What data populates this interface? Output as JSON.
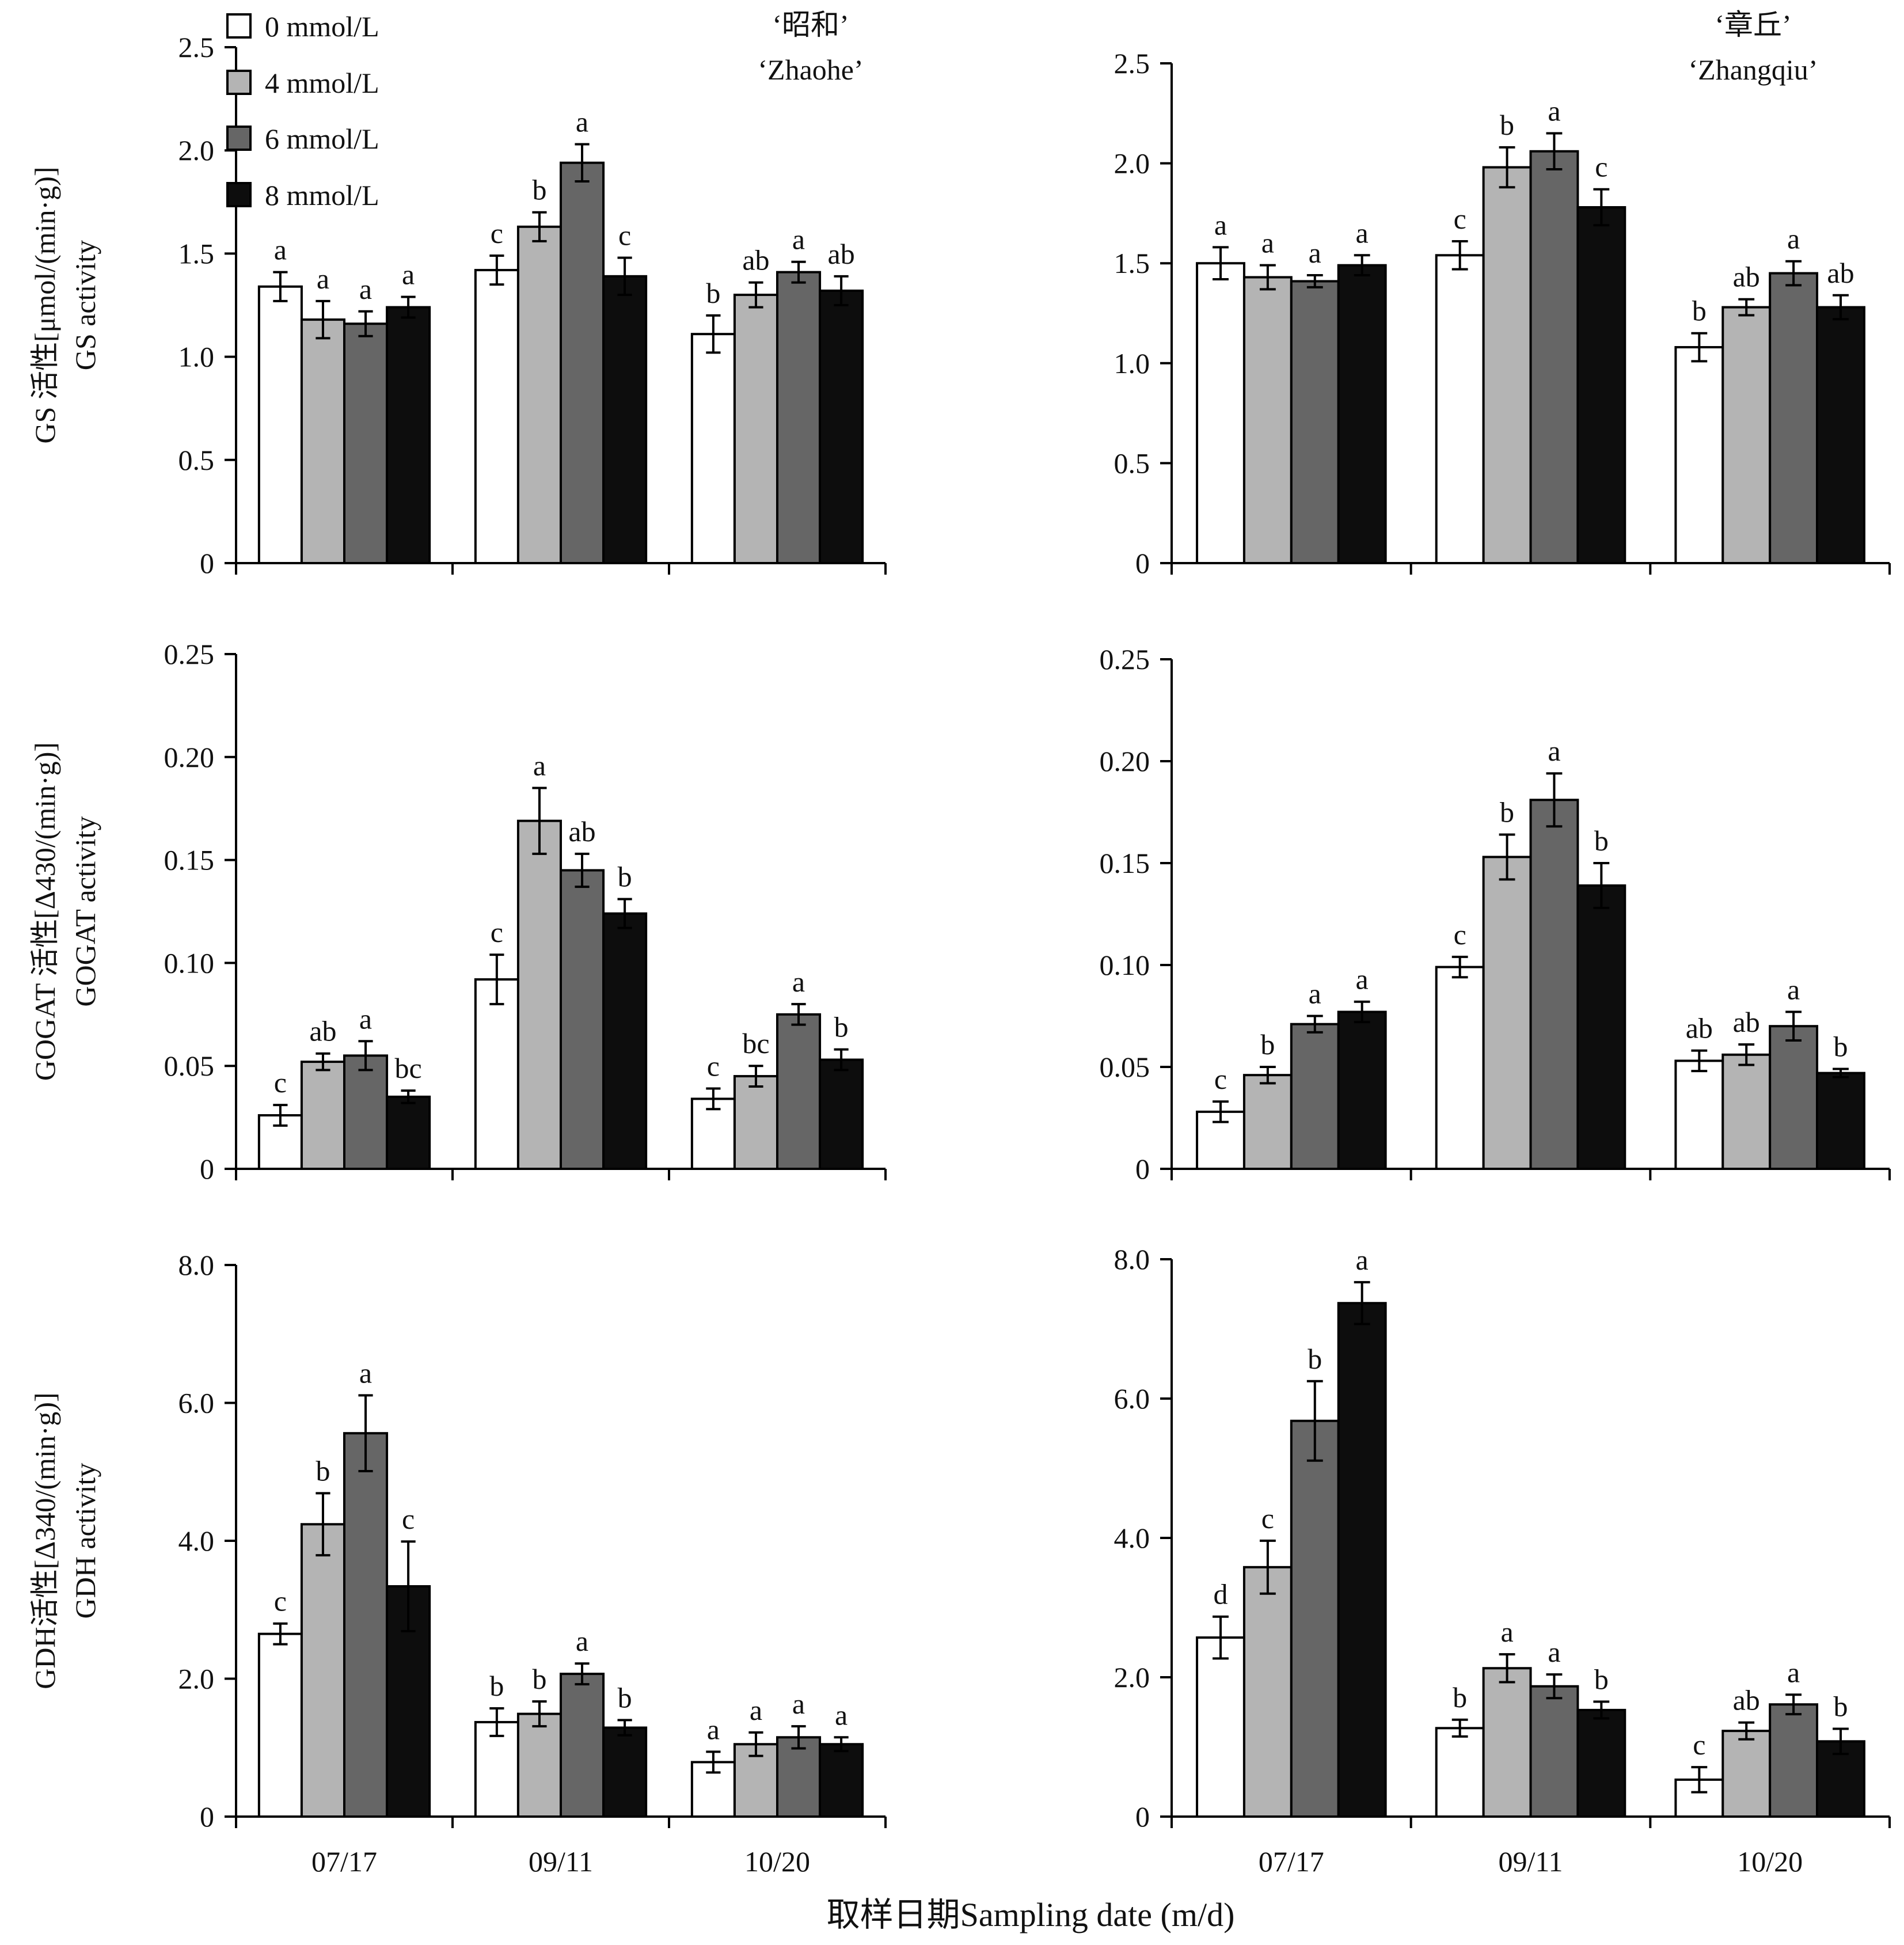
{
  "legend": {
    "entries": [
      {
        "label": "0 mmol/L",
        "color": "#ffffff"
      },
      {
        "label": "4 mmol/L",
        "color": "#b4b4b4"
      },
      {
        "label": "6 mmol/L",
        "color": "#666666"
      },
      {
        "label": "8 mmol/L",
        "color": "#0d0d0d"
      }
    ]
  },
  "cultivars": [
    {
      "cn": "‘昭和’",
      "en": "‘Zhaohe’"
    },
    {
      "cn": "‘章丘’",
      "en": "‘Zhangqiu’"
    }
  ],
  "xlabel": "取样日期Sampling date (m/d)",
  "chart_data": [
    {
      "type": "bar",
      "id": "gs-zhaohe",
      "ylabel_cn": "GS 活性[μmol/(min·g)]",
      "ylabel_en": "GS activity",
      "ylim": [
        0,
        2.5
      ],
      "yticks": [
        "0",
        "0.5",
        "1.0",
        "1.5",
        "2.0",
        "2.5"
      ],
      "categories": [
        "07/17",
        "09/11",
        "10/20"
      ],
      "show_xticklabels": false,
      "series": [
        {
          "name": "0 mmol/L",
          "values": [
            1.34,
            1.42,
            1.11
          ],
          "errors": [
            0.07,
            0.07,
            0.09
          ],
          "letters": [
            "a",
            "c",
            "b"
          ]
        },
        {
          "name": "4 mmol/L",
          "values": [
            1.18,
            1.63,
            1.3
          ],
          "errors": [
            0.09,
            0.07,
            0.06
          ],
          "letters": [
            "a",
            "b",
            "ab"
          ]
        },
        {
          "name": "6 mmol/L",
          "values": [
            1.16,
            1.94,
            1.41
          ],
          "errors": [
            0.06,
            0.09,
            0.05
          ],
          "letters": [
            "a",
            "a",
            "a"
          ]
        },
        {
          "name": "8 mmol/L",
          "values": [
            1.24,
            1.39,
            1.32
          ],
          "errors": [
            0.05,
            0.09,
            0.07
          ],
          "letters": [
            "a",
            "c",
            "ab"
          ]
        }
      ]
    },
    {
      "type": "bar",
      "id": "gs-zhangqiu",
      "ylabel_cn": "",
      "ylabel_en": "",
      "ylim": [
        0,
        2.5
      ],
      "yticks": [
        "0",
        "0.5",
        "1.0",
        "1.5",
        "2.0",
        "2.5"
      ],
      "categories": [
        "07/17",
        "09/11",
        "10/20"
      ],
      "show_xticklabels": false,
      "series": [
        {
          "name": "0 mmol/L",
          "values": [
            1.5,
            1.54,
            1.08
          ],
          "errors": [
            0.08,
            0.07,
            0.07
          ],
          "letters": [
            "a",
            "c",
            "b"
          ]
        },
        {
          "name": "4 mmol/L",
          "values": [
            1.43,
            1.98,
            1.28
          ],
          "errors": [
            0.06,
            0.1,
            0.04
          ],
          "letters": [
            "a",
            "b",
            "ab"
          ]
        },
        {
          "name": "6 mmol/L",
          "values": [
            1.41,
            2.06,
            1.45
          ],
          "errors": [
            0.03,
            0.09,
            0.06
          ],
          "letters": [
            "a",
            "a",
            "a"
          ]
        },
        {
          "name": "8 mmol/L",
          "values": [
            1.49,
            1.78,
            1.28
          ],
          "errors": [
            0.05,
            0.09,
            0.06
          ],
          "letters": [
            "a",
            "c",
            "ab"
          ]
        }
      ]
    },
    {
      "type": "bar",
      "id": "gogat-zhaohe",
      "ylabel_cn": "GOGAT 活性[Δ430/(min·g)]",
      "ylabel_en": "GOGAT activity",
      "ylim": [
        0,
        0.25
      ],
      "yticks": [
        "0",
        "0.05",
        "0.10",
        "0.15",
        "0.20",
        "0.25"
      ],
      "categories": [
        "07/17",
        "09/11",
        "10/20"
      ],
      "show_xticklabels": false,
      "series": [
        {
          "name": "0 mmol/L",
          "values": [
            0.026,
            0.092,
            0.034
          ],
          "errors": [
            0.005,
            0.012,
            0.005
          ],
          "letters": [
            "c",
            "c",
            "c"
          ]
        },
        {
          "name": "4 mmol/L",
          "values": [
            0.052,
            0.169,
            0.045
          ],
          "errors": [
            0.004,
            0.016,
            0.005
          ],
          "letters": [
            "ab",
            "a",
            "bc"
          ]
        },
        {
          "name": "6 mmol/L",
          "values": [
            0.055,
            0.145,
            0.075
          ],
          "errors": [
            0.007,
            0.008,
            0.005
          ],
          "letters": [
            "a",
            "ab",
            "a"
          ]
        },
        {
          "name": "8 mmol/L",
          "values": [
            0.035,
            0.124,
            0.053
          ],
          "errors": [
            0.003,
            0.007,
            0.005
          ],
          "letters": [
            "bc",
            "b",
            "b"
          ]
        }
      ]
    },
    {
      "type": "bar",
      "id": "gogat-zhangqiu",
      "ylabel_cn": "",
      "ylabel_en": "",
      "ylim": [
        0,
        0.25
      ],
      "yticks": [
        "0",
        "0.05",
        "0.10",
        "0.15",
        "0.20",
        "0.25"
      ],
      "categories": [
        "07/17",
        "09/11",
        "10/20"
      ],
      "show_xticklabels": false,
      "series": [
        {
          "name": "0 mmol/L",
          "values": [
            0.028,
            0.099,
            0.053
          ],
          "errors": [
            0.005,
            0.005,
            0.005
          ],
          "letters": [
            "c",
            "c",
            "ab"
          ]
        },
        {
          "name": "4 mmol/L",
          "values": [
            0.046,
            0.153,
            0.056
          ],
          "errors": [
            0.004,
            0.011,
            0.005
          ],
          "letters": [
            "b",
            "b",
            "ab"
          ]
        },
        {
          "name": "6 mmol/L",
          "values": [
            0.071,
            0.181,
            0.07
          ],
          "errors": [
            0.004,
            0.013,
            0.007
          ],
          "letters": [
            "a",
            "a",
            "a"
          ]
        },
        {
          "name": "8 mmol/L",
          "values": [
            0.077,
            0.139,
            0.047
          ],
          "errors": [
            0.005,
            0.011,
            0.002
          ],
          "letters": [
            "a",
            "b",
            "b"
          ]
        }
      ]
    },
    {
      "type": "bar",
      "id": "gdh-zhaohe",
      "ylabel_cn": "GDH活性[Δ340/(min·g)]",
      "ylabel_en": "GDH  activity",
      "ylim": [
        0,
        8.0
      ],
      "yticks": [
        "0",
        "2.0",
        "4.0",
        "6.0",
        "8.0"
      ],
      "categories": [
        "07/17",
        "09/11",
        "10/20"
      ],
      "show_xticklabels": true,
      "series": [
        {
          "name": "0 mmol/L",
          "values": [
            2.65,
            1.37,
            0.79
          ],
          "errors": [
            0.15,
            0.2,
            0.15
          ],
          "letters": [
            "c",
            "b",
            "a"
          ]
        },
        {
          "name": "4 mmol/L",
          "values": [
            4.24,
            1.49,
            1.05
          ],
          "errors": [
            0.45,
            0.18,
            0.17
          ],
          "letters": [
            "b",
            "b",
            "a"
          ]
        },
        {
          "name": "6 mmol/L",
          "values": [
            5.56,
            2.07,
            1.15
          ],
          "errors": [
            0.55,
            0.15,
            0.16
          ],
          "letters": [
            "a",
            "a",
            "a"
          ]
        },
        {
          "name": "8 mmol/L",
          "values": [
            3.34,
            1.29,
            1.05
          ],
          "errors": [
            0.65,
            0.11,
            0.1
          ],
          "letters": [
            "c",
            "b",
            "a"
          ]
        }
      ]
    },
    {
      "type": "bar",
      "id": "gdh-zhangqiu",
      "ylabel_cn": "",
      "ylabel_en": "",
      "ylim": [
        0,
        8.0
      ],
      "yticks": [
        "0",
        "2.0",
        "4.0",
        "6.0",
        "8.0"
      ],
      "categories": [
        "07/17",
        "09/11",
        "10/20"
      ],
      "show_xticklabels": true,
      "series": [
        {
          "name": "0 mmol/L",
          "values": [
            2.57,
            1.27,
            0.53
          ],
          "errors": [
            0.3,
            0.12,
            0.18
          ],
          "letters": [
            "d",
            "b",
            "c"
          ]
        },
        {
          "name": "4 mmol/L",
          "values": [
            3.58,
            2.13,
            1.23
          ],
          "errors": [
            0.38,
            0.2,
            0.12
          ],
          "letters": [
            "c",
            "a",
            "ab"
          ]
        },
        {
          "name": "6 mmol/L",
          "values": [
            5.68,
            1.87,
            1.61
          ],
          "errors": [
            0.57,
            0.17,
            0.14
          ],
          "letters": [
            "b",
            "a",
            "a"
          ]
        },
        {
          "name": "8 mmol/L",
          "values": [
            7.37,
            1.53,
            1.08
          ],
          "errors": [
            0.3,
            0.12,
            0.18
          ],
          "letters": [
            "a",
            "b",
            "b"
          ]
        }
      ]
    }
  ]
}
